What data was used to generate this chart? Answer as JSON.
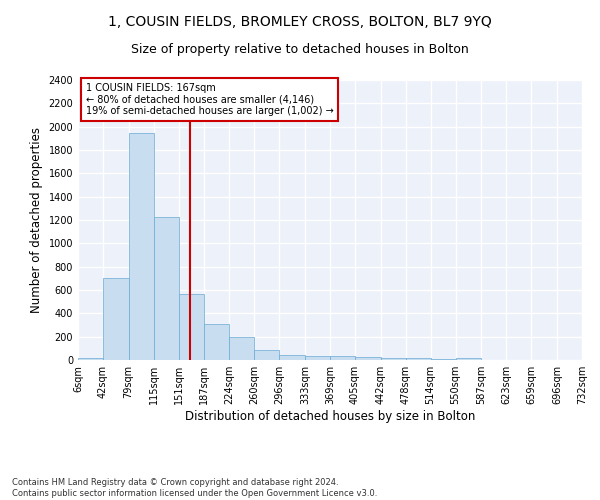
{
  "title_line1": "1, COUSIN FIELDS, BROMLEY CROSS, BOLTON, BL7 9YQ",
  "title_line2": "Size of property relative to detached houses in Bolton",
  "xlabel": "Distribution of detached houses by size in Bolton",
  "ylabel": "Number of detached properties",
  "bar_color": "#c9ddf0",
  "bar_edge_color": "#6aaad4",
  "bar_edge_width": 0.5,
  "vline_color": "#cc0000",
  "vline_x": 167,
  "annotation_text": "1 COUSIN FIELDS: 167sqm\n← 80% of detached houses are smaller (4,146)\n19% of semi-detached houses are larger (1,002) →",
  "annotation_box_color": "#ffffff",
  "annotation_box_edge_color": "#cc0000",
  "footnote": "Contains HM Land Registry data © Crown copyright and database right 2024.\nContains public sector information licensed under the Open Government Licence v3.0.",
  "bin_edges": [
    6,
    42,
    79,
    115,
    151,
    187,
    224,
    260,
    296,
    333,
    369,
    405,
    442,
    478,
    514,
    550,
    587,
    623,
    659,
    696,
    732
  ],
  "bin_values": [
    15,
    700,
    1950,
    1230,
    570,
    305,
    200,
    85,
    45,
    35,
    35,
    25,
    20,
    20,
    5,
    20,
    0,
    0,
    0,
    0
  ],
  "ylim": [
    0,
    2400
  ],
  "yticks": [
    0,
    200,
    400,
    600,
    800,
    1000,
    1200,
    1400,
    1600,
    1800,
    2000,
    2200,
    2400
  ],
  "background_color": "#edf2fa",
  "grid_color": "#ffffff",
  "title_fontsize": 10,
  "subtitle_fontsize": 9,
  "tick_fontsize": 7,
  "label_fontsize": 8.5,
  "footnote_fontsize": 6
}
